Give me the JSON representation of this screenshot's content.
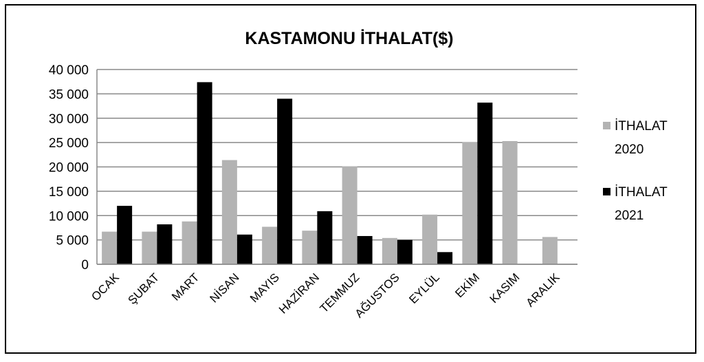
{
  "chart_data": {
    "type": "bar",
    "title": "KASTAMONU İTHALAT($)",
    "xlabel": "",
    "ylabel": "",
    "categories": [
      "OCAK",
      "ŞUBAT",
      "MART",
      "NİSAN",
      "MAYIS",
      "HAZİRAN",
      "TEMMUZ",
      "AĞUSTOS",
      "EYLÜL",
      "EKİM",
      "KASIM",
      "ARALIK"
    ],
    "series": [
      {
        "name": "İTHALAT 2020",
        "legend_lines": [
          "İTHALAT",
          "2020"
        ],
        "color": "#b3b3b3",
        "values": [
          6700,
          6700,
          8800,
          21400,
          7700,
          6900,
          20100,
          5400,
          10200,
          25100,
          25300,
          5600
        ]
      },
      {
        "name": "İTHALAT 2021",
        "legend_lines": [
          "İTHALAT",
          "2021"
        ],
        "color": "#000000",
        "values": [
          12000,
          8200,
          37400,
          6100,
          34000,
          10900,
          5800,
          5000,
          2500,
          33200,
          null,
          null
        ]
      }
    ],
    "ylim": [
      0,
      40000
    ],
    "yticks": [
      0,
      5000,
      10000,
      15000,
      20000,
      25000,
      30000,
      35000,
      40000
    ],
    "ytick_labels": [
      "0",
      "5 000",
      "10 000",
      "15 000",
      "20 000",
      "25 000",
      "30 000",
      "35 000",
      "40 000"
    ],
    "grid": true,
    "legend_position": "right"
  }
}
